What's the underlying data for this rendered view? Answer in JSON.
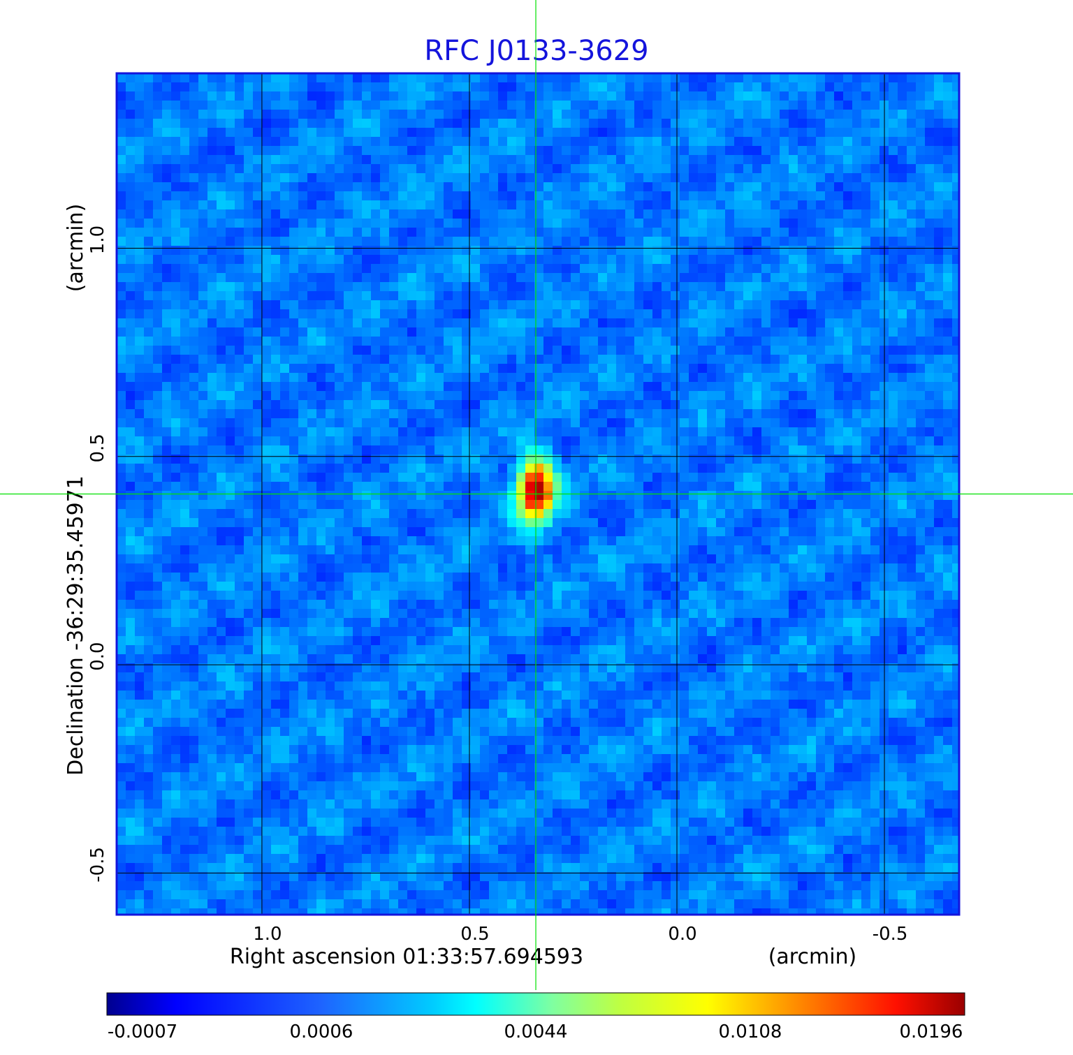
{
  "chart_data": {
    "type": "heatmap",
    "title": "RFC J0133-3629",
    "xlabel": "Right ascension  01:33:57.694593",
    "xunit": "(arcmin)",
    "ylabel": "Declination  -36:29:35.45971",
    "yunit": "(arcmin)",
    "xlim": [
      1.35,
      -0.68
    ],
    "ylim": [
      -0.6,
      1.42
    ],
    "x_ticks": [
      {
        "value": 1.0,
        "label": "1.0"
      },
      {
        "value": 0.5,
        "label": "0.5"
      },
      {
        "value": 0.0,
        "label": "0.0"
      },
      {
        "value": -0.5,
        "label": "-0.5"
      }
    ],
    "y_ticks": [
      {
        "value": 1.0,
        "label": "1.0"
      },
      {
        "value": 0.5,
        "label": "0.5"
      },
      {
        "value": 0.0,
        "label": "0.0"
      },
      {
        "value": -0.5,
        "label": "-0.5"
      }
    ],
    "grid": true,
    "crosshair": {
      "x": 0.34,
      "y": 0.41
    },
    "peak": {
      "x": 0.34,
      "y": 0.42,
      "value": 0.0196
    },
    "colorbar": {
      "colormap": "jet",
      "labels": [
        "-0.0007",
        "0.0006",
        "0.0044",
        "0.0108",
        "0.0196"
      ]
    },
    "colors": {
      "title": "#1414dc",
      "frame": "#1414dc",
      "crosshair": "#00e000",
      "grid": "#000000"
    }
  }
}
